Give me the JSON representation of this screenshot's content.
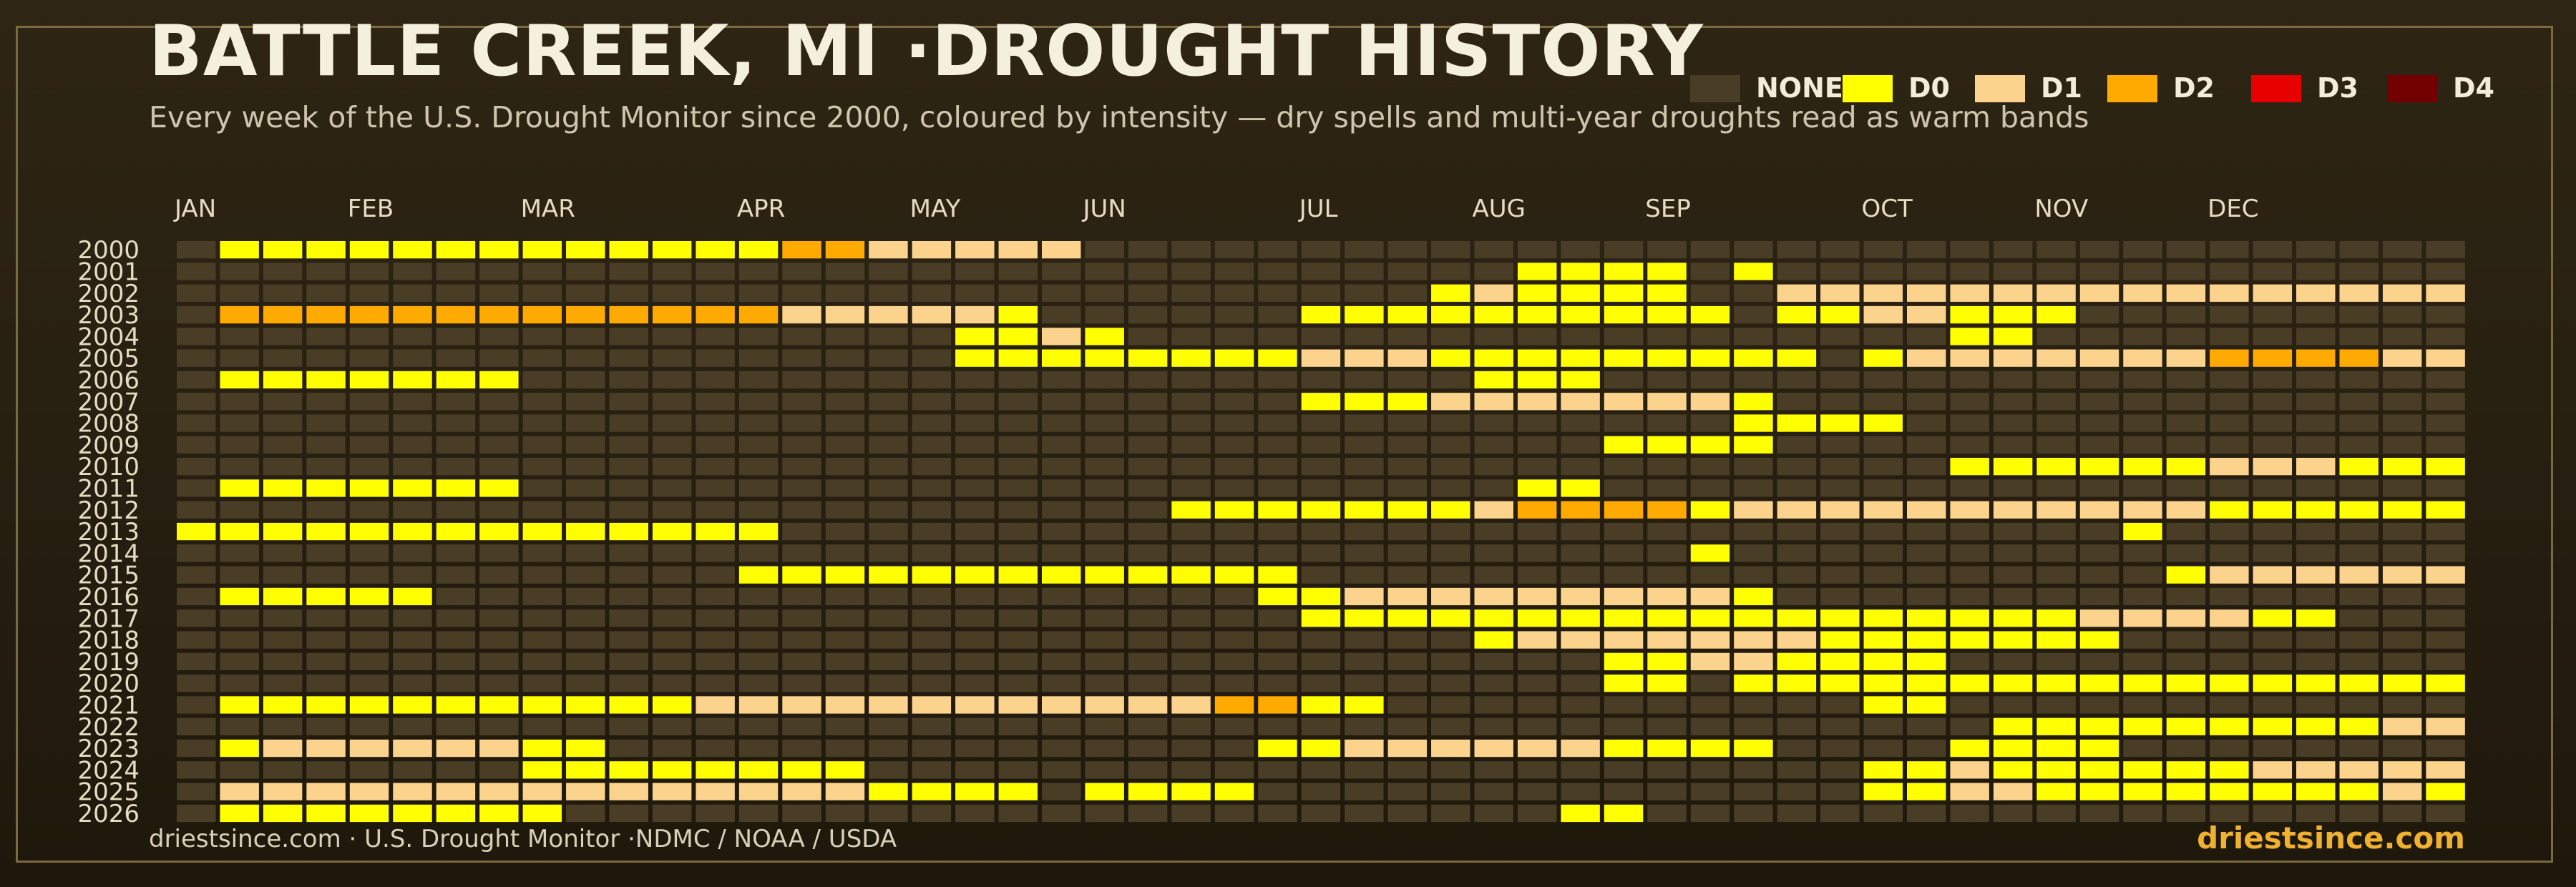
{
  "title": "BATTLE CREEK, MI ·DROUGHT HISTORY",
  "subtitle": "Every week of the U.S. Drought Monitor since 2000, coloured by intensity — dry spells and multi-year droughts read as warm bands",
  "legend": [
    {
      "key": "NONE",
      "label": "NONE",
      "color": "#4a3d26"
    },
    {
      "key": "D0",
      "label": "D0",
      "color": "#ffff00"
    },
    {
      "key": "D1",
      "label": "D1",
      "color": "#fcd38c"
    },
    {
      "key": "D2",
      "label": "D2",
      "color": "#ffaa00"
    },
    {
      "key": "D3",
      "label": "D3",
      "color": "#e60000"
    },
    {
      "key": "D4",
      "label": "D4",
      "color": "#730000"
    }
  ],
  "footer": {
    "source": "driestsince.com  · U.S. Drought Monitor ·NDMC / NOAA / USDA",
    "brand": "driestsince.com"
  },
  "chart_data": {
    "type": "heatmap",
    "x_labels": [
      "JAN",
      "FEB",
      "MAR",
      "APR",
      "MAY",
      "JUN",
      "JUL",
      "AUG",
      "SEP",
      "OCT",
      "NOV",
      "DEC"
    ],
    "x_label_weeks": [
      0,
      4,
      8,
      13,
      17,
      21,
      26,
      30,
      34,
      39,
      43,
      47
    ],
    "weeks_per_year": 53,
    "levels": [
      "NONE",
      "D0",
      "D1",
      "D2",
      "D3",
      "D4"
    ],
    "rows": [
      {
        "year": "2000",
        "weeks": "01111111111111332222200000000000000000000000000000000"
      },
      {
        "year": "2001",
        "weeks": "00000000000000000000000000000001111010000000000000000"
      },
      {
        "year": "2002",
        "weeks": "00000000000000000000000000000121111002222222222222222"
      },
      {
        "year": "2003",
        "weeks": "03333333333333222221000000111111111101122111000000000"
      },
      {
        "year": "2004",
        "weeks": "00000000000000000011210000000000000000000110000000000"
      },
      {
        "year": "2005",
        "weeks": "00000000000000000011111111222111111111012222222333322"
      },
      {
        "year": "2006",
        "weeks": "01111111000000000000000000000011100000000000000000000"
      },
      {
        "year": "2007",
        "weeks": "00000000000000000000000000111222222210000000000000000"
      },
      {
        "year": "2008",
        "weeks": "00000000000000000000000000000000000011110000000000000"
      },
      {
        "year": "2009",
        "weeks": "00000000000000000000000000000000011110000000000000000"
      },
      {
        "year": "2010",
        "weeks": "00000000000000000000000000000000000000000111111222111"
      },
      {
        "year": "2011",
        "weeks": "01111111000000000000000000000001100000000000000000000"
      },
      {
        "year": "2012",
        "weeks": "00000000000000000000000111111123333122222222222111111"
      },
      {
        "year": "2013",
        "weeks": "11111111111111000000000000000000000000000000010000000"
      },
      {
        "year": "2014",
        "weeks": "00000000000000000000000000000000000100000000000000000"
      },
      {
        "year": "2015",
        "weeks": "00000000000001111111111111000000000000000000001222222"
      },
      {
        "year": "2016",
        "weeks": "01111100000000000000000001122222222210000000000000000"
      },
      {
        "year": "2017",
        "weeks": "00000000000000000000000000111111111111111111222211000"
      },
      {
        "year": "2018",
        "weeks": "00000000000000000000000000000012222222111111100000000"
      },
      {
        "year": "2019",
        "weeks": "00000000000000000000000000000000011221111000000000000"
      },
      {
        "year": "2020",
        "weeks": "00000000000000000000000000000000011011111111111111111"
      },
      {
        "year": "2021",
        "weeks": "01111111111122222222222233110000000000011000000000000"
      },
      {
        "year": "2022",
        "weeks": "00000000000000000000000000000000000000000011111111122"
      },
      {
        "year": "2023",
        "weeks": "01222222110000000000000001122222211110000111100000000"
      },
      {
        "year": "2024",
        "weeks": "00000000111111110000000000000000000000011211111122222"
      },
      {
        "year": "2025",
        "weeks": "02222222222222221111011110000000000000011221111111121"
      },
      {
        "year": "2026",
        "weeks": "01111111100000000000000000000000110000000000000000000"
      }
    ]
  }
}
